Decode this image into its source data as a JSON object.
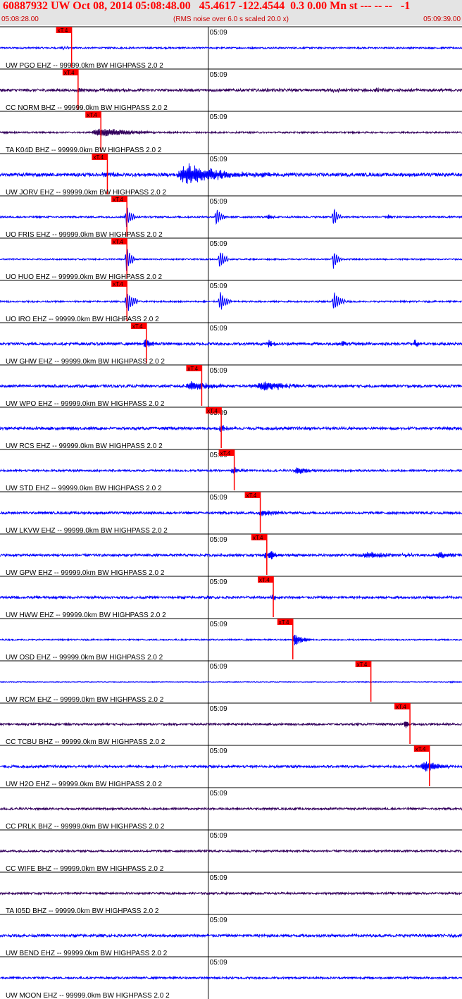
{
  "header": {
    "title": "60887932 UW Oct 08, 2014 05:08:48.00   45.4617 -122.4544  0.3 0.00 Mn st --- -- --   -1",
    "start_time": "05:08:28.00",
    "noise_note": "(RMS noise over 6.0 s scaled 20.0 x)",
    "end_time": "05:09:39.00"
  },
  "colors": {
    "header_bg": "#e4e4e4",
    "title": "#ff0000",
    "trace_blue": "#0000ff",
    "trace_purple": "#33005c",
    "pick": "#ff0000"
  },
  "chart_data": {
    "type": "seismogram",
    "time_start": "05:08:28.00",
    "time_end": "05:09:39.00",
    "time_start_s": 0,
    "time_end_s": 71,
    "minute_mark_label": "05:09",
    "minute_mark_s": 32,
    "pick_label": "xT.4",
    "stations": [
      {
        "label": "UW PGO EHZ -- 99999.0km BW  HIGHPASS  2.0  2",
        "color": "blue",
        "pick_s": 11.0,
        "noise": 0.12,
        "events": [
          {
            "t": 9.5,
            "dur": 1.5,
            "amp": 0.45,
            "freq": 2.5
          }
        ]
      },
      {
        "label": "CC NORM BHZ -- 99999.0km BW  HIGHPASS  2.0  2",
        "color": "purple",
        "pick_s": 12.0,
        "noise": 0.2,
        "events": [
          {
            "t": 11.0,
            "dur": 3,
            "amp": 0.35,
            "freq": 1.5
          },
          {
            "t": 40,
            "dur": 6,
            "amp": 0.3,
            "freq": 0.6
          },
          {
            "t": 50,
            "dur": 6,
            "amp": 0.3,
            "freq": 0.6
          },
          {
            "t": 57,
            "dur": 5,
            "amp": 0.25,
            "freq": 0.6
          }
        ]
      },
      {
        "label": "TA K04D BHZ -- 99999.0km BW  HIGHPASS  2.0  2",
        "color": "purple",
        "pick_s": 15.5,
        "noise": 0.12,
        "events": [
          {
            "t": 14,
            "dur": 10,
            "amp": 1.1,
            "freq": 0.9
          }
        ]
      },
      {
        "label": "UW JORV EHZ -- 99999.0km BW  HIGHPASS  2.0  2",
        "color": "blue",
        "pick_s": 16.5,
        "noise": 0.25,
        "events": [
          {
            "t": 15.5,
            "dur": 3,
            "amp": 0.6,
            "freq": 2
          },
          {
            "t": 27,
            "dur": 11,
            "amp": 2.5,
            "freq": 2
          },
          {
            "t": 38,
            "dur": 8,
            "amp": 0.5,
            "freq": 2
          }
        ]
      },
      {
        "label": "UO FRIS EHZ -- 99999.0km BW  HIGHPASS  2.0  2",
        "color": "blue",
        "pick_s": 19.5,
        "noise": 0.12,
        "events": [
          {
            "t": 19.2,
            "dur": 1.6,
            "amp": 3.0,
            "freq": 0.5
          },
          {
            "t": 33,
            "dur": 1.5,
            "amp": 2.5,
            "freq": 0.5
          },
          {
            "t": 41,
            "dur": 1.2,
            "amp": 0.8,
            "freq": 1
          },
          {
            "t": 51,
            "dur": 1.5,
            "amp": 2.5,
            "freq": 0.5
          },
          {
            "t": 59.5,
            "dur": 0.8,
            "amp": 0.8,
            "freq": 1
          }
        ]
      },
      {
        "label": "UO HUO EHZ -- 99999.0km BW  HIGHPASS  2.0  2",
        "color": "blue",
        "pick_s": 19.5,
        "noise": 0.1,
        "events": [
          {
            "t": 19.2,
            "dur": 1.6,
            "amp": 3.0,
            "freq": 0.5
          },
          {
            "t": 33.5,
            "dur": 1.6,
            "amp": 2.5,
            "freq": 0.5
          },
          {
            "t": 51,
            "dur": 1.5,
            "amp": 2.5,
            "freq": 0.5
          }
        ]
      },
      {
        "label": "UO IRO EHZ -- 99999.0km BW  HIGHPASS  2.0  2",
        "color": "blue",
        "pick_s": 19.5,
        "noise": 0.12,
        "events": [
          {
            "t": 19.2,
            "dur": 2,
            "amp": 3.0,
            "freq": 0.5
          },
          {
            "t": 33.5,
            "dur": 2,
            "amp": 2.5,
            "freq": 0.5
          },
          {
            "t": 51,
            "dur": 2,
            "amp": 2.5,
            "freq": 0.5
          }
        ]
      },
      {
        "label": "UW GHW EHZ -- 99999.0km BW  HIGHPASS  2.0  2",
        "color": "blue",
        "pick_s": 22.5,
        "noise": 0.2,
        "events": [
          {
            "t": 22,
            "dur": 2,
            "amp": 1.2,
            "freq": 1
          },
          {
            "t": 41,
            "dur": 2,
            "amp": 1.0,
            "freq": 1
          },
          {
            "t": 52.5,
            "dur": 1,
            "amp": 1.0,
            "freq": 1
          },
          {
            "t": 63.5,
            "dur": 1.5,
            "amp": 1.0,
            "freq": 1
          }
        ]
      },
      {
        "label": "UW WPO EHZ -- 99999.0km BW  HIGHPASS  2.0  2",
        "color": "blue",
        "pick_s": 31.0,
        "noise": 0.2,
        "events": [
          {
            "t": 28.5,
            "dur": 6,
            "amp": 1.2,
            "freq": 2
          },
          {
            "t": 39,
            "dur": 8,
            "amp": 1.3,
            "freq": 2
          }
        ]
      },
      {
        "label": "UW RCS EHZ -- 99999.0km BW  HIGHPASS  2.0  2",
        "color": "blue",
        "pick_s": 34.0,
        "noise": 0.2,
        "events": [
          {
            "t": 33.5,
            "dur": 2,
            "amp": 1.0,
            "freq": 2
          }
        ]
      },
      {
        "label": "UW STD EHZ -- 99999.0km BW  HIGHPASS  2.0  2",
        "color": "blue",
        "pick_s": 36.0,
        "noise": 0.15,
        "events": [
          {
            "t": 35.5,
            "dur": 2,
            "amp": 0.8,
            "freq": 2
          },
          {
            "t": 45,
            "dur": 4,
            "amp": 0.9,
            "freq": 2
          }
        ]
      },
      {
        "label": "UW LKVW EHZ -- 99999.0km BW  HIGHPASS  2.0  2",
        "color": "blue",
        "pick_s": 40.0,
        "noise": 0.18,
        "events": [
          {
            "t": 39.5,
            "dur": 4,
            "amp": 0.9,
            "freq": 2
          }
        ]
      },
      {
        "label": "UW GPW EHZ -- 99999.0km BW  HIGHPASS  2.0  2",
        "color": "blue",
        "pick_s": 41.0,
        "noise": 0.18,
        "events": [
          {
            "t": 40.5,
            "dur": 3,
            "amp": 1.5,
            "freq": 1.5
          },
          {
            "t": 55,
            "dur": 9,
            "amp": 0.7,
            "freq": 2
          },
          {
            "t": 67,
            "dur": 4,
            "amp": 0.8,
            "freq": 2
          }
        ]
      },
      {
        "label": "UW HWW EHZ -- 99999.0km BW  HIGHPASS  2.0  2",
        "color": "blue",
        "pick_s": 42.0,
        "noise": 0.18,
        "events": [
          {
            "t": 41.5,
            "dur": 2,
            "amp": 0.7,
            "freq": 2
          }
        ]
      },
      {
        "label": "UW OSD EHZ -- 99999.0km BW  HIGHPASS  2.0  2",
        "color": "blue",
        "pick_s": 45.0,
        "noise": 0.1,
        "events": [
          {
            "t": 44.8,
            "dur": 3,
            "amp": 1.5,
            "freq": 1.2
          }
        ]
      },
      {
        "label": "UW RCM EHZ -- 99999.0km BW  HIGHPASS  2.0  2",
        "color": "blue",
        "pick_s": 57.0,
        "noise": 0.05,
        "events": [
          {
            "t": 56,
            "dur": 1,
            "amp": 0.2,
            "freq": 2
          },
          {
            "t": 69,
            "dur": 1.5,
            "amp": 0.2,
            "freq": 2
          }
        ]
      },
      {
        "label": "CC TCBU BHZ -- 99999.0km BW  HIGHPASS  2.0  2",
        "color": "purple",
        "pick_s": 63.0,
        "noise": 0.15,
        "events": [
          {
            "t": 62,
            "dur": 2,
            "amp": 0.9,
            "freq": 1.5
          }
        ]
      },
      {
        "label": "UW H2O EHZ -- 99999.0km BW  HIGHPASS  2.0  2",
        "color": "blue",
        "pick_s": 66.0,
        "noise": 0.18,
        "events": [
          {
            "t": 64.5,
            "dur": 5,
            "amp": 1.3,
            "freq": 2
          }
        ]
      },
      {
        "label": "CC PRLK BHZ -- 99999.0km BW  HIGHPASS  2.0  2",
        "color": "purple",
        "pick_s": null,
        "noise": 0.15,
        "events": []
      },
      {
        "label": "CC WIFE BHZ -- 99999.0km BW  HIGHPASS  2.0  2",
        "color": "purple",
        "pick_s": null,
        "noise": 0.15,
        "events": []
      },
      {
        "label": "TA I05D BHZ -- 99999.0km BW  HIGHPASS  2.0  2",
        "color": "purple",
        "pick_s": null,
        "noise": 0.15,
        "events": []
      },
      {
        "label": "UW BEND EHZ -- 99999.0km BW  HIGHPASS  2.0  2",
        "color": "blue",
        "pick_s": null,
        "noise": 0.2,
        "events": []
      },
      {
        "label": "UW MOON EHZ -- 99999.0km BW  HIGHPASS  2.0  2",
        "color": "blue",
        "pick_s": null,
        "noise": 0.15,
        "events": []
      }
    ]
  }
}
